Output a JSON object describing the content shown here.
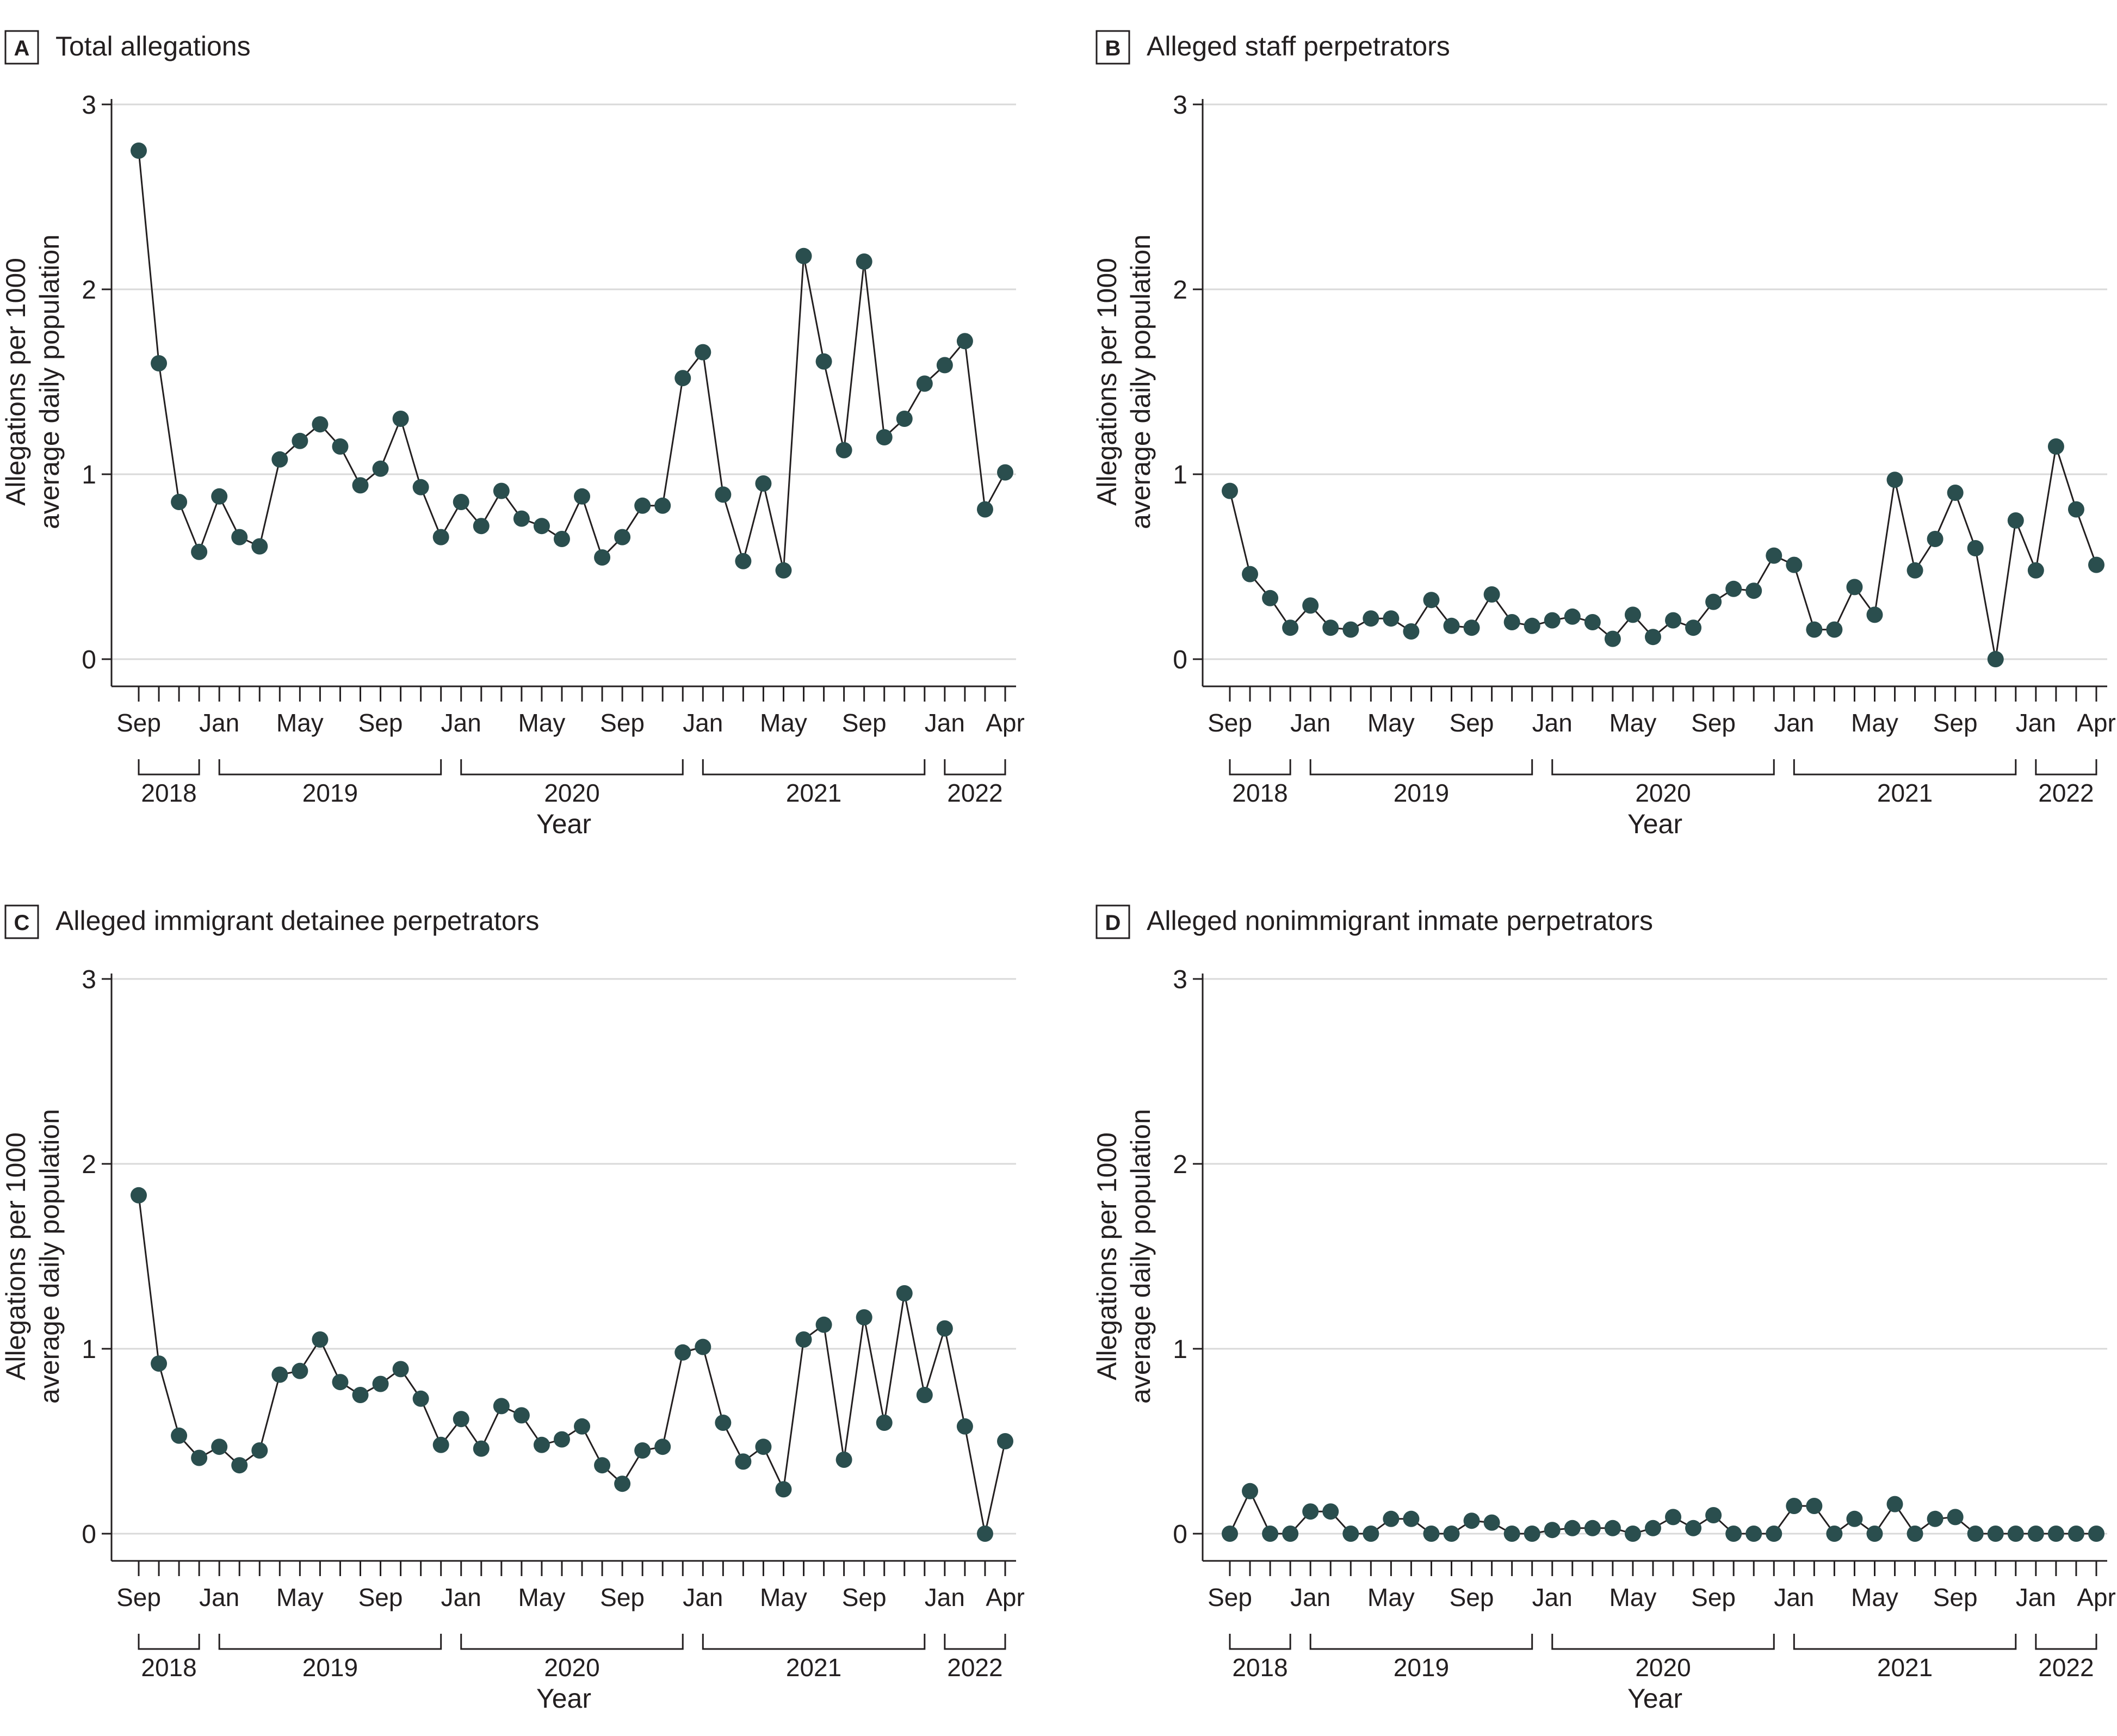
{
  "figure": {
    "months": [
      "Sep",
      "Oct",
      "Nov",
      "Dec",
      "Jan",
      "Feb",
      "Mar",
      "Apr",
      "May",
      "Jun",
      "Jul",
      "Aug",
      "Sep",
      "Oct",
      "Nov",
      "Dec",
      "Jan",
      "Feb",
      "Mar",
      "Apr",
      "May",
      "Jun",
      "Jul",
      "Aug",
      "Sep",
      "Oct",
      "Nov",
      "Dec",
      "Jan",
      "Feb",
      "Mar",
      "Apr",
      "May",
      "Jun",
      "Jul",
      "Aug",
      "Sep",
      "Oct",
      "Nov",
      "Dec",
      "Jan",
      "Feb",
      "Mar",
      "Apr"
    ],
    "tick_labels": [
      "Sep",
      "Jan",
      "May",
      "Sep",
      "Jan",
      "May",
      "Sep",
      "Jan",
      "May",
      "Sep",
      "Jan",
      "Apr"
    ],
    "tick_index": [
      0,
      4,
      8,
      12,
      16,
      20,
      24,
      28,
      32,
      36,
      40,
      43
    ],
    "years": [
      {
        "label": "2018",
        "start": 0,
        "end": 3
      },
      {
        "label": "2019",
        "start": 4,
        "end": 15
      },
      {
        "label": "2020",
        "start": 16,
        "end": 27
      },
      {
        "label": "2021",
        "start": 28,
        "end": 39
      },
      {
        "label": "2022",
        "start": 40,
        "end": 43
      }
    ],
    "colors": {
      "marker": "#2a4e4e",
      "line": "#231f20",
      "grid": "#d9d9d9",
      "axis": "#231f20",
      "text": "#231f20"
    }
  },
  "chart_data": [
    {
      "type": "line",
      "panel": "A",
      "title": "Total allegations",
      "xlabel": "Year",
      "ylabel": [
        "Allegations per 1000",
        "average daily population"
      ],
      "ylim": [
        0,
        3
      ],
      "yticks": [
        0,
        1,
        2,
        3
      ],
      "series": [
        {
          "name": "Total allegations",
          "values": [
            2.75,
            1.6,
            0.85,
            0.58,
            0.88,
            0.66,
            0.61,
            1.08,
            1.18,
            1.27,
            1.15,
            0.94,
            1.03,
            1.3,
            0.93,
            0.66,
            0.85,
            0.72,
            0.91,
            0.76,
            0.72,
            0.65,
            0.88,
            0.55,
            0.66,
            0.83,
            0.83,
            1.52,
            1.66,
            0.89,
            0.53,
            0.95,
            0.48,
            2.18,
            1.61,
            1.13,
            2.15,
            1.2,
            1.3,
            1.49,
            1.59,
            1.72,
            0.81,
            1.01
          ]
        }
      ]
    },
    {
      "type": "line",
      "panel": "B",
      "title": "Alleged staff perpetrators",
      "xlabel": "Year",
      "ylabel": [
        "Allegations per 1000",
        "average daily population"
      ],
      "ylim": [
        0,
        3
      ],
      "yticks": [
        0,
        1,
        2,
        3
      ],
      "series": [
        {
          "name": "Alleged staff perpetrators",
          "values": [
            0.91,
            0.46,
            0.33,
            0.17,
            0.29,
            0.17,
            0.16,
            0.22,
            0.22,
            0.15,
            0.32,
            0.18,
            0.17,
            0.35,
            0.2,
            0.18,
            0.21,
            0.23,
            0.2,
            0.11,
            0.24,
            0.12,
            0.21,
            0.17,
            0.31,
            0.38,
            0.37,
            0.56,
            0.51,
            0.16,
            0.16,
            0.39,
            0.24,
            0.97,
            0.48,
            0.65,
            0.9,
            0.6,
            0.0,
            0.75,
            0.48,
            1.15,
            0.81,
            0.51
          ]
        }
      ]
    },
    {
      "type": "line",
      "panel": "C",
      "title": "Alleged immigrant detainee perpetrators",
      "xlabel": "Year",
      "ylabel": [
        "Allegations per 1000",
        "average daily population"
      ],
      "ylim": [
        0,
        3
      ],
      "yticks": [
        0,
        1,
        2,
        3
      ],
      "series": [
        {
          "name": "Alleged immigrant detainee perpetrators",
          "values": [
            1.83,
            0.92,
            0.53,
            0.41,
            0.47,
            0.37,
            0.45,
            0.86,
            0.88,
            1.05,
            0.82,
            0.75,
            0.81,
            0.89,
            0.73,
            0.48,
            0.62,
            0.46,
            0.69,
            0.64,
            0.48,
            0.51,
            0.58,
            0.37,
            0.27,
            0.45,
            0.47,
            0.98,
            1.01,
            0.6,
            0.39,
            0.47,
            0.24,
            1.05,
            1.13,
            0.4,
            1.17,
            0.6,
            1.3,
            0.75,
            1.11,
            0.58,
            0.0,
            0.5
          ]
        }
      ]
    },
    {
      "type": "line",
      "panel": "D",
      "title": "Alleged nonimmigrant inmate perpetrators",
      "xlabel": "Year",
      "ylabel": [
        "Allegations per 1000",
        "average daily population"
      ],
      "ylim": [
        0,
        3
      ],
      "yticks": [
        0,
        1,
        2,
        3
      ],
      "series": [
        {
          "name": "Alleged nonimmigrant inmate perpetrators",
          "values": [
            0.0,
            0.23,
            0.0,
            0.0,
            0.12,
            0.12,
            0.0,
            0.0,
            0.08,
            0.08,
            0.0,
            0.0,
            0.07,
            0.06,
            0.0,
            0.0,
            0.02,
            0.03,
            0.03,
            0.03,
            0.0,
            0.03,
            0.09,
            0.03,
            0.1,
            0.0,
            0.0,
            0.0,
            0.15,
            0.15,
            0.0,
            0.08,
            0.0,
            0.16,
            0.0,
            0.08,
            0.09,
            0.0,
            0.0,
            0.0,
            0.0,
            0.0,
            0.0,
            0.0
          ]
        }
      ]
    }
  ]
}
